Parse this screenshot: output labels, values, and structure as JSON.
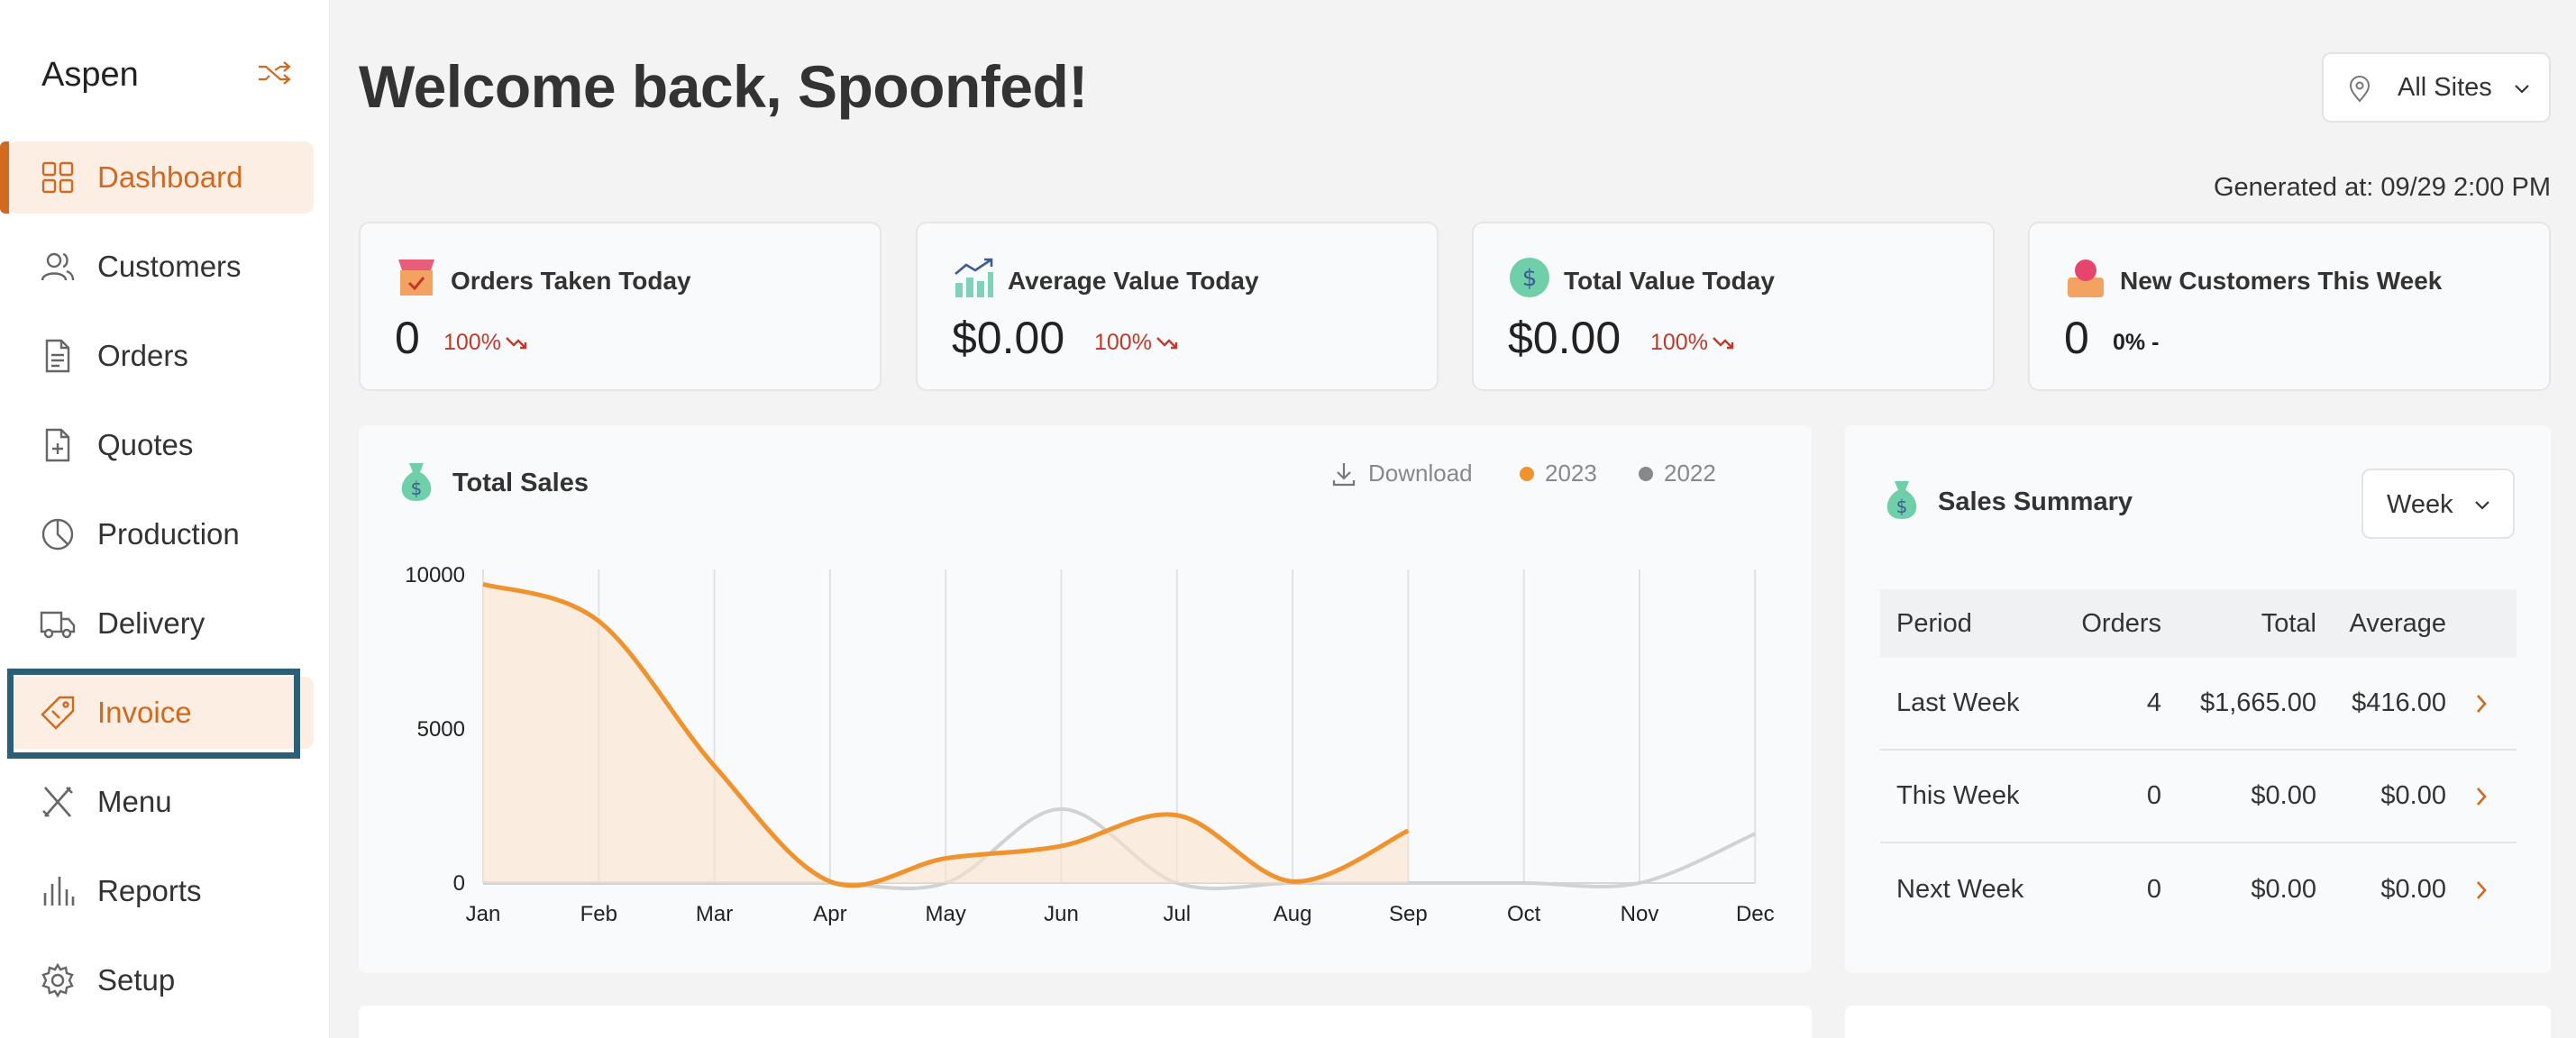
{
  "sidebar": {
    "brand": "Aspen",
    "items": [
      {
        "label": "Dashboard",
        "icon": "dashboard-icon"
      },
      {
        "label": "Customers",
        "icon": "users-icon"
      },
      {
        "label": "Orders",
        "icon": "document-icon"
      },
      {
        "label": "Quotes",
        "icon": "quote-doc-icon"
      },
      {
        "label": "Production",
        "icon": "pie-icon"
      },
      {
        "label": "Delivery",
        "icon": "truck-icon"
      },
      {
        "label": "Invoice",
        "icon": "ticket-icon"
      },
      {
        "label": "Menu",
        "icon": "utensils-icon"
      },
      {
        "label": "Reports",
        "icon": "bar-chart-icon"
      },
      {
        "label": "Setup",
        "icon": "gear-icon"
      }
    ]
  },
  "header": {
    "title": "Welcome back, Spoonfed!",
    "site_selector": "All Sites",
    "generated": "Generated at: 09/29 2:00 PM"
  },
  "stats": [
    {
      "title": "Orders Taken Today",
      "value": "0",
      "trend": "100%"
    },
    {
      "title": "Average Value Today",
      "value": "$0.00",
      "trend": "100%"
    },
    {
      "title": "Total Value Today",
      "value": "$0.00",
      "trend": "100%"
    },
    {
      "title": "New Customers This Week",
      "value": "0",
      "trend": "0% -"
    }
  ],
  "sales_panel": {
    "title": "Total Sales",
    "download_label": "Download"
  },
  "summary": {
    "title": "Sales Summary",
    "period_select": "Week",
    "headers": {
      "period": "Period",
      "orders": "Orders",
      "total": "Total",
      "average": "Average"
    },
    "rows": [
      {
        "period": "Last Week",
        "orders": "4",
        "total": "$1,665.00",
        "average": "$416.00"
      },
      {
        "period": "This Week",
        "orders": "0",
        "total": "$0.00",
        "average": "$0.00"
      },
      {
        "period": "Next Week",
        "orders": "0",
        "total": "$0.00",
        "average": "$0.00"
      }
    ]
  },
  "colors": {
    "accent": "#d2691e",
    "series_2023": "#f0922e",
    "series_2022": "#d0d0d0",
    "trend_down": "#c0392b"
  },
  "chart_data": {
    "type": "line",
    "title": "Total Sales",
    "categories": [
      "Jan",
      "Feb",
      "Mar",
      "Apr",
      "May",
      "Jun",
      "Jul",
      "Aug",
      "Sep",
      "Oct",
      "Nov",
      "Dec"
    ],
    "yticks": [
      "10000",
      "5000",
      "0"
    ],
    "ylim": [
      0,
      10000
    ],
    "grid": "vertical",
    "legend": "top-right",
    "series": [
      {
        "name": "2023",
        "values": [
          9700,
          8500,
          3800,
          50,
          800,
          1200,
          2200,
          50,
          1700,
          null,
          null,
          null
        ]
      },
      {
        "name": "2022",
        "values": [
          0,
          0,
          0,
          0,
          0,
          2400,
          0,
          0,
          0,
          0,
          0,
          1600
        ]
      }
    ]
  }
}
